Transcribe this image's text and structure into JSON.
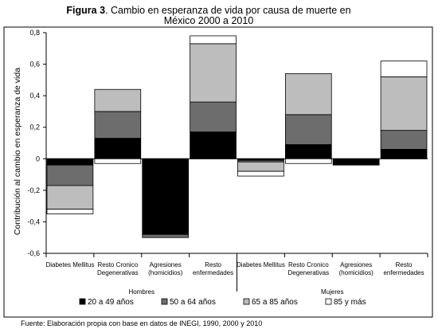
{
  "figure_label": "Figura 3",
  "title_rest": ". Cambio en esperanza de vida por causa de muerte en",
  "title_line2": "México 2000 a 2010",
  "ylabel": "Contribución al cambio en esperanza de vida",
  "source": "Fuente: Elaboración propia con base en datos de INEGI, 1990, 2000 y 2010",
  "chart_data": {
    "type": "bar",
    "stacked": true,
    "groups": [
      "Hombres",
      "Mujeres"
    ],
    "categories": [
      {
        "group": "Hombres",
        "lines": [
          "Diabetes Mellitus"
        ]
      },
      {
        "group": "Hombres",
        "lines": [
          "Resto Cronico",
          "Degenerativas"
        ]
      },
      {
        "group": "Hombres",
        "lines": [
          "Agresiones",
          "(homicidios)"
        ]
      },
      {
        "group": "Hombres",
        "lines": [
          "Resto",
          "enfermedades"
        ]
      },
      {
        "group": "Mujeres",
        "lines": [
          "Diabetes Mellitus"
        ]
      },
      {
        "group": "Mujeres",
        "lines": [
          "Resto Cronico",
          "Degenerativas"
        ]
      },
      {
        "group": "Mujeres",
        "lines": [
          "Agresiones",
          "(homicidios)"
        ]
      },
      {
        "group": "Mujeres",
        "lines": [
          "Resto",
          "enfermedades"
        ]
      }
    ],
    "series": [
      {
        "name": "20 a 49 años",
        "color": "#000000",
        "values": [
          -0.04,
          0.13,
          -0.48,
          0.17,
          -0.01,
          0.09,
          -0.04,
          0.06
        ]
      },
      {
        "name": "50 a 64 años",
        "color": "#6d6d6d",
        "values": [
          -0.13,
          0.17,
          -0.02,
          0.19,
          -0.01,
          0.19,
          0.0,
          0.12
        ]
      },
      {
        "name": "65 a 85 años",
        "color": "#bdbdbd",
        "values": [
          -0.15,
          0.14,
          0.0,
          0.37,
          -0.06,
          0.26,
          0.0,
          0.34
        ]
      },
      {
        "name": "85 y más",
        "color": "#ffffff",
        "values": [
          -0.03,
          -0.03,
          0.0,
          0.05,
          -0.03,
          -0.03,
          0.0,
          0.1
        ]
      }
    ],
    "ylim": [
      -0.6,
      0.8
    ],
    "yticks": [
      "0,8",
      "0,6",
      "0,4",
      "0,2",
      "0",
      "-0,2",
      "-0,4",
      "-0,6"
    ],
    "ytick_values": [
      0.8,
      0.6,
      0.4,
      0.2,
      0,
      -0.2,
      -0.4,
      -0.6
    ],
    "grid": false,
    "legend_position": "bottom"
  }
}
